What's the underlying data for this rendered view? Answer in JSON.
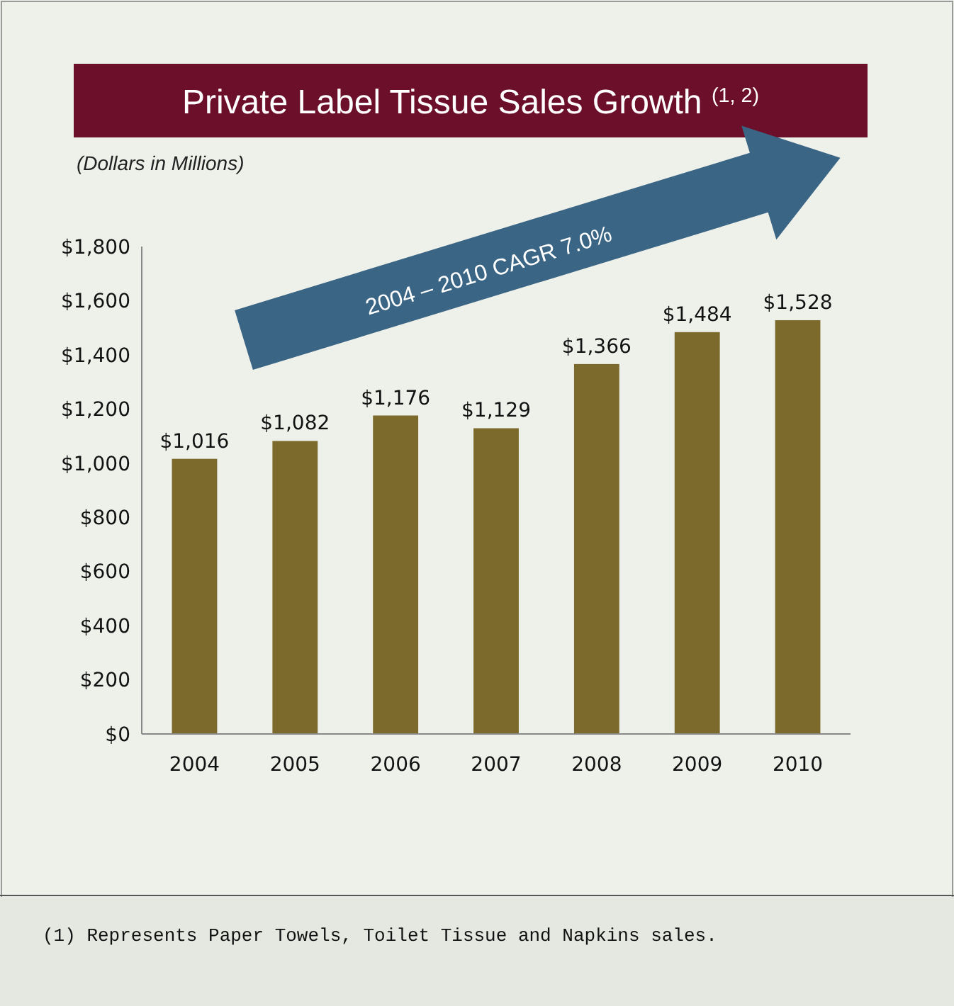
{
  "chart_data": {
    "type": "bar",
    "title": "Private Label Tissue Sales Growth $^{(1, 2)}$",
    "subtitle": "(Dollars in Millions)",
    "categories": [
      "2004",
      "2005",
      "2006",
      "2007",
      "2008",
      "2009",
      "2010"
    ],
    "values": [
      1016,
      1082,
      1176,
      1129,
      1366,
      1484,
      1528
    ],
    "value_labels": [
      "$1,016",
      "$1,082",
      "$1,176",
      "$1,129",
      "$1,366",
      "$1,484",
      "$1,528"
    ],
    "color": "#7b6a2c",
    "ylim": [
      0,
      1800
    ],
    "yticks": [
      {
        "value": 0,
        "label": "$0"
      },
      {
        "value": 200,
        "label": "$200"
      },
      {
        "value": 400,
        "label": "$400"
      },
      {
        "value": 600,
        "label": "$600"
      },
      {
        "value": 800,
        "label": "$800"
      },
      {
        "value": 1000,
        "label": "$1,000"
      },
      {
        "value": 1200,
        "label": "$1,200"
      },
      {
        "value": 1400,
        "label": "$1,400"
      },
      {
        "value": 1600,
        "label": "$1,600"
      },
      {
        "value": 1800,
        "label": "$1,800"
      }
    ],
    "grid": false,
    "annotations": [
      "2004 – 2010 CAGR 7.0%",
      "(1) Represents Paper Towels, Toilet Tissue and Napkins sales."
    ]
  }
}
